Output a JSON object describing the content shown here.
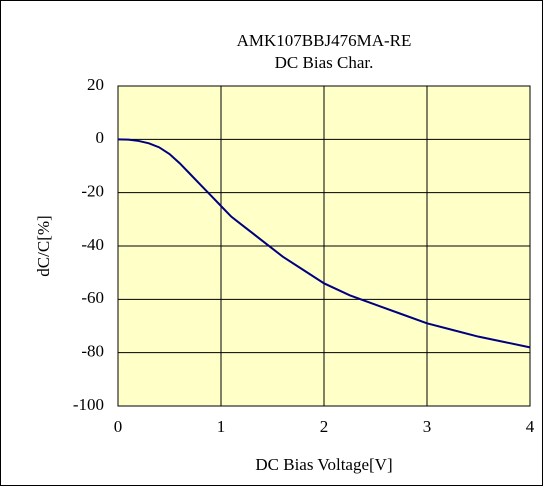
{
  "chart_data": {
    "type": "line",
    "title": "AMK107BBJ476MA-RE",
    "subtitle": "DC Bias Char.",
    "x_label": "DC Bias Voltage[V]",
    "y_label": "dC/C[%]",
    "x": [
      0,
      0.1,
      0.2,
      0.3,
      0.4,
      0.5,
      0.6,
      0.7,
      0.8,
      0.9,
      1.0,
      1.1,
      1.2,
      1.4,
      1.6,
      1.8,
      2.0,
      2.25,
      2.5,
      2.75,
      3.0,
      3.25,
      3.5,
      3.75,
      4.0
    ],
    "series": [
      {
        "name": "AMK107BBJ476MA-RE",
        "color": "#000080",
        "values": [
          0,
          -0.1,
          -0.6,
          -1.5,
          -3,
          -5.5,
          -9,
          -13,
          -17,
          -21,
          -25,
          -29,
          -32,
          -38,
          -44,
          -49,
          -54,
          -58.5,
          -62,
          -65.5,
          -69,
          -71.5,
          -74,
          -76,
          -78
        ]
      }
    ],
    "xlim": [
      0,
      4
    ],
    "xticks": [
      0,
      1,
      2,
      3,
      4
    ],
    "ylim": [
      -100,
      20
    ],
    "yticks": [
      -100,
      -80,
      -60,
      -40,
      -20,
      0,
      20
    ],
    "grid": true,
    "background": "#ffffc8"
  }
}
